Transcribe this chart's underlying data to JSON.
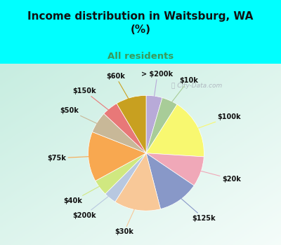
{
  "title": "Income distribution in Waitsburg, WA\n(%)",
  "subtitle": "All residents",
  "title_color": "#111111",
  "subtitle_color": "#3a9a5c",
  "background_color": "#00ffff",
  "chart_bg_top_left": "#b8e8d8",
  "chart_bg_bottom_right": "#e8f8f0",
  "labels": [
    "> $200k",
    "$10k",
    "$100k",
    "$20k",
    "$125k",
    "$30k",
    "$200k",
    "$40k",
    "$75k",
    "$50k",
    "$150k",
    "$60k"
  ],
  "values": [
    4.5,
    4.5,
    17.0,
    8.5,
    11.5,
    13.0,
    3.5,
    4.5,
    14.0,
    6.0,
    4.5,
    8.5
  ],
  "colors": [
    "#b8aad8",
    "#a8cc98",
    "#f8f870",
    "#f0a8b8",
    "#8898c8",
    "#f8c898",
    "#b8c8e0",
    "#d0e880",
    "#f8a850",
    "#c8b898",
    "#e87878",
    "#c8a020"
  ],
  "watermark": "ⓘ City-Data.com",
  "label_fontsize": 7,
  "startangle": 90
}
